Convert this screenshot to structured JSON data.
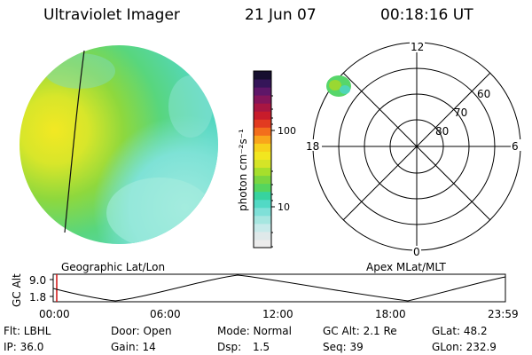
{
  "header": {
    "title": "Ultraviolet Imager",
    "date": "21 Jun 07",
    "time": "00:18:16 UT"
  },
  "colorbar": {
    "unit_label": "photon cm⁻²s⁻¹",
    "ticks": [
      "100",
      "10"
    ],
    "colors": [
      "#ececec",
      "#dfe9ea",
      "#c7eaea",
      "#a6e6e0",
      "#7fe0d8",
      "#52d9c5",
      "#37d39f",
      "#55d55e",
      "#7ad640",
      "#a6df2c",
      "#d5e427",
      "#f2e61f",
      "#f7d11b",
      "#f9a51b",
      "#f36e1c",
      "#e23b20",
      "#c81c2b",
      "#a81642",
      "#84155a",
      "#5e1668",
      "#351559",
      "#160e2f"
    ]
  },
  "polar": {
    "top_label": "12",
    "bottom_label": "0",
    "left_label": "18",
    "right_label": "6",
    "ring_labels": [
      "60",
      "70",
      "80"
    ]
  },
  "timeline": {
    "left_title": "Geographic Lat/Lon",
    "right_title": "Apex  MLat/MLT",
    "y_axis_label": "GC Alt",
    "y_ticks": [
      "9.0",
      "1.8"
    ],
    "x_ticks": [
      "00:00",
      "06:00",
      "12:00",
      "18:00",
      "23:59"
    ]
  },
  "info": {
    "row1": {
      "flt": "Flt: LBHL",
      "door": "Door: Open",
      "mode": "Mode: Normal",
      "gcalt": "GC Alt: 2.1 Re",
      "glat": "GLat:  48.2"
    },
    "row2": {
      "ip": "IP: 36.0",
      "gain": "Gain: 14",
      "dsp_label": "Dsp:",
      "dsp_value": "1.5",
      "seq": "Seq: 39",
      "glon": "GLon: 232.9"
    }
  }
}
